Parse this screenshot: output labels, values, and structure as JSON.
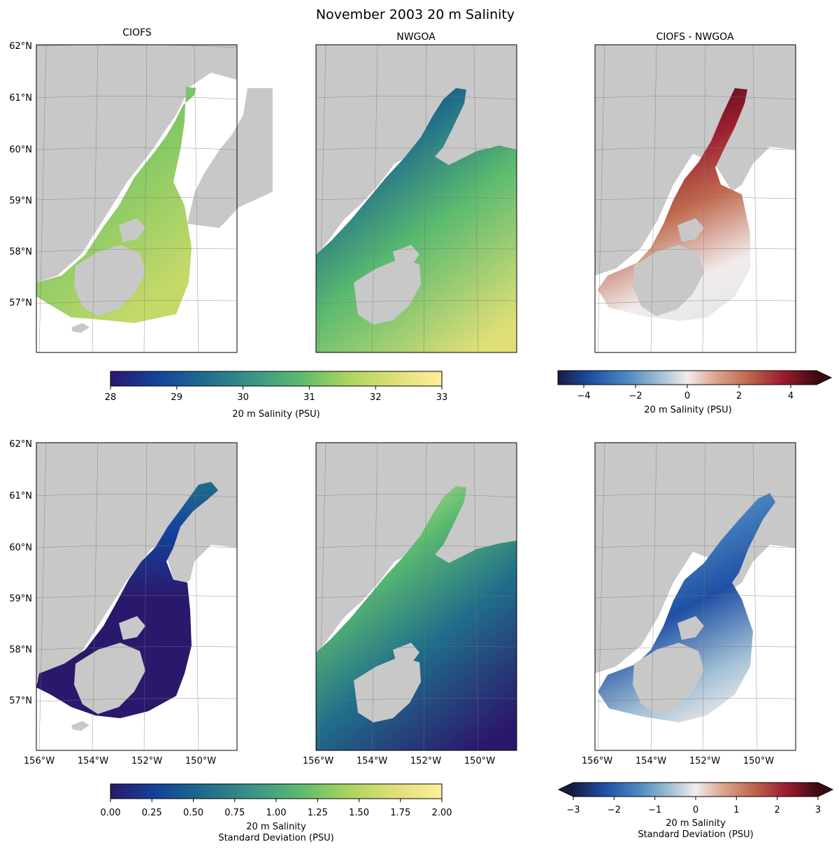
{
  "figure": {
    "title": "November 2003 20 m Salinity"
  },
  "columns": [
    "CIOFS",
    "NWGOA",
    "CIOFS - NWGOA"
  ],
  "axes": {
    "lat_labels": [
      "62°N",
      "61°N",
      "60°N",
      "59°N",
      "58°N",
      "57°N"
    ],
    "lon_labels": [
      "156°W",
      "154°W",
      "152°W",
      "150°W"
    ]
  },
  "colorbars": {
    "top_main": {
      "label": "20 m Salinity (PSU)",
      "ticks": [
        "28",
        "29",
        "30",
        "31",
        "32",
        "33"
      ],
      "range": [
        28,
        33
      ]
    },
    "top_diff": {
      "label": "20 m Salinity (PSU)",
      "ticks": [
        "−4",
        "−2",
        "0",
        "2",
        "4"
      ],
      "range": [
        -5,
        5
      ],
      "extend": "max"
    },
    "bottom_main": {
      "label_line1": "20 m Salinity",
      "label_line2": "Standard Deviation (PSU)",
      "ticks": [
        "0.00",
        "0.25",
        "0.50",
        "0.75",
        "1.00",
        "1.25",
        "1.50",
        "1.75",
        "2.00"
      ],
      "range": [
        0,
        2
      ]
    },
    "bottom_diff": {
      "label_line1": "20 m Salinity",
      "label_line2": "Standard Deviation (PSU)",
      "ticks": [
        "−3",
        "−2",
        "−1",
        "0",
        "1",
        "2",
        "3"
      ],
      "range": [
        -3,
        3
      ],
      "extend": "both"
    }
  },
  "chart_data": {
    "type": "heatmap",
    "panels": [
      {
        "row": 1,
        "column": "CIOFS",
        "variable": "20 m Salinity (PSU)"
      },
      {
        "row": 1,
        "column": "NWGOA",
        "variable": "20 m Salinity (PSU)"
      },
      {
        "row": 1,
        "column": "CIOFS - NWGOA",
        "variable": "20 m Salinity (PSU)"
      },
      {
        "row": 2,
        "column": "CIOFS",
        "variable": "20 m Salinity Standard Deviation (PSU)"
      },
      {
        "row": 2,
        "column": "NWGOA",
        "variable": "20 m Salinity Standard Deviation (PSU)"
      },
      {
        "row": 2,
        "column": "CIOFS - NWGOA",
        "variable": "20 m Salinity Standard Deviation (PSU)"
      }
    ]
  },
  "colors": {
    "land": "#c8c8c8",
    "missing": "#ffffff",
    "haline": [
      "#2a186c",
      "#14439c",
      "#206e8b",
      "#3c9387",
      "#5aba6f",
      "#a8d35d",
      "#e0df77",
      "#fdef9a"
    ],
    "balance": [
      "#181c43",
      "#1f50a5",
      "#4d8ac2",
      "#a4c1d5",
      "#f1ecec",
      "#deaa96",
      "#c06a4f",
      "#9a1d2f",
      "#3c0911"
    ]
  }
}
